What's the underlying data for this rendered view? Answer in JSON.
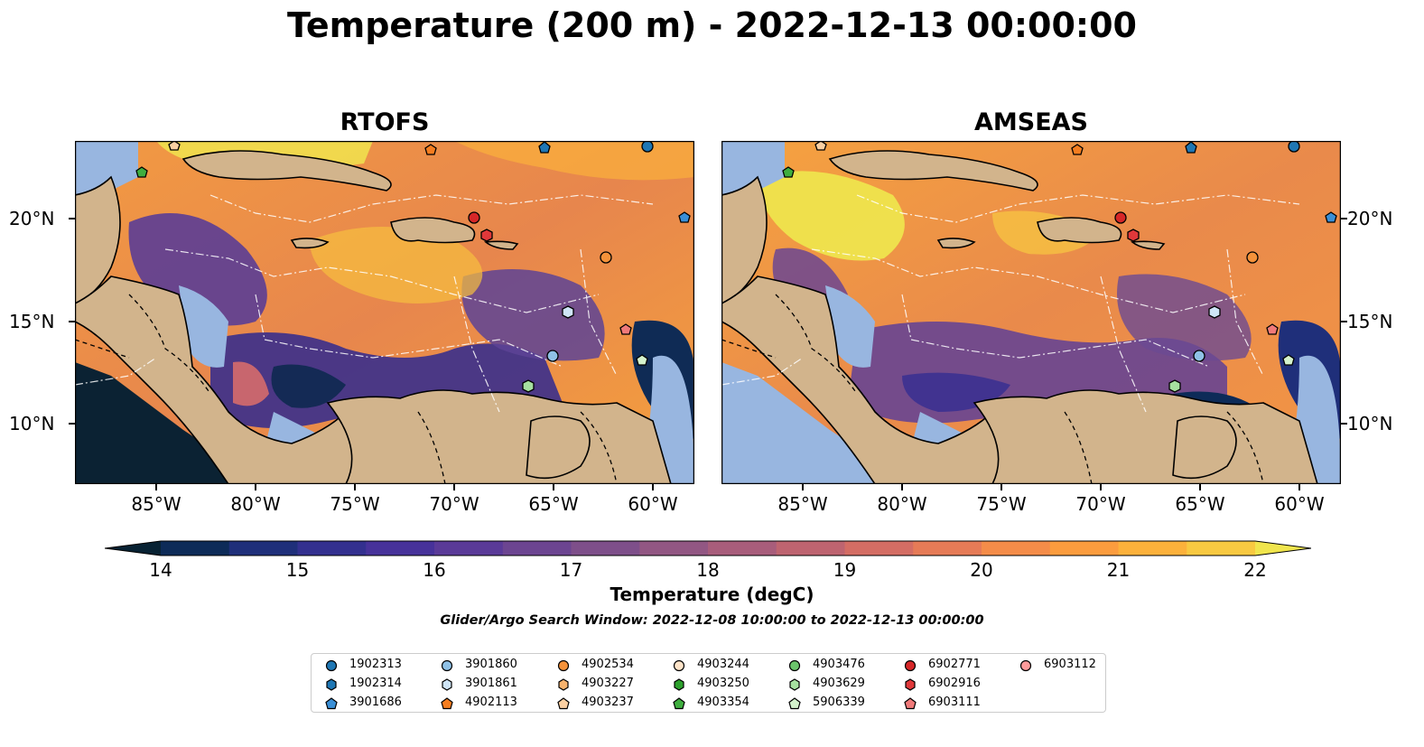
{
  "title": "Temperature (200 m) - 2022-12-13 00:00:00",
  "panels": [
    {
      "title": "RTOFS"
    },
    {
      "title": "AMSEAS"
    }
  ],
  "axes": {
    "lon_ticks": [
      "85°W",
      "80°W",
      "75°W",
      "70°W",
      "65°W",
      "60°W"
    ],
    "lat_ticks": [
      "20°N",
      "15°N",
      "10°N"
    ]
  },
  "colorbar": {
    "label": "Temperature (degC)",
    "range": [
      14,
      22
    ],
    "ticks": [
      "14",
      "15",
      "16",
      "17",
      "18",
      "19",
      "20",
      "21",
      "22"
    ],
    "colors": [
      "#082233",
      "#0d2b58",
      "#1f2f7a",
      "#33308f",
      "#47329a",
      "#5a3a98",
      "#6c4591",
      "#7e4f8a",
      "#925783",
      "#a85d7b",
      "#be6470",
      "#d46d64",
      "#e67b57",
      "#f48c49",
      "#fb9c3e",
      "#fcb13b",
      "#f8c941",
      "#f0e54d"
    ]
  },
  "search_window": "Glider/Argo Search Window: 2022-12-08 10:00:00 to 2022-12-13 00:00:00",
  "legend": [
    {
      "id": "1902313",
      "shape": "circle",
      "color": "#1f77b4"
    },
    {
      "id": "1902314",
      "shape": "hexagon",
      "color": "#1f77b4"
    },
    {
      "id": "3901686",
      "shape": "pentagon",
      "color": "#3a8fd6"
    },
    {
      "id": "3901860",
      "shape": "circle",
      "color": "#8fc1e6"
    },
    {
      "id": "3901861",
      "shape": "hexagon",
      "color": "#cfe5f7"
    },
    {
      "id": "4902113",
      "shape": "pentagon",
      "color": "#f57d1f"
    },
    {
      "id": "4902534",
      "shape": "circle",
      "color": "#f5923a"
    },
    {
      "id": "4903227",
      "shape": "hexagon",
      "color": "#f7b36e"
    },
    {
      "id": "4903237",
      "shape": "pentagon",
      "color": "#fbd0a2"
    },
    {
      "id": "4903244",
      "shape": "circle",
      "color": "#fde3c8"
    },
    {
      "id": "4903250",
      "shape": "hexagon",
      "color": "#2ca02c"
    },
    {
      "id": "4903354",
      "shape": "pentagon",
      "color": "#3fae3f"
    },
    {
      "id": "4903476",
      "shape": "circle",
      "color": "#6cc46c"
    },
    {
      "id": "4903629",
      "shape": "hexagon",
      "color": "#a6e0a0"
    },
    {
      "id": "5906339",
      "shape": "pentagon",
      "color": "#d4f2cc"
    },
    {
      "id": "6902771",
      "shape": "circle",
      "color": "#d62728"
    },
    {
      "id": "6902916",
      "shape": "hexagon",
      "color": "#e0383a"
    },
    {
      "id": "6903111",
      "shape": "pentagon",
      "color": "#f07a7a"
    },
    {
      "id": "6903112",
      "shape": "circle",
      "color": "#ff9b9b"
    }
  ]
}
